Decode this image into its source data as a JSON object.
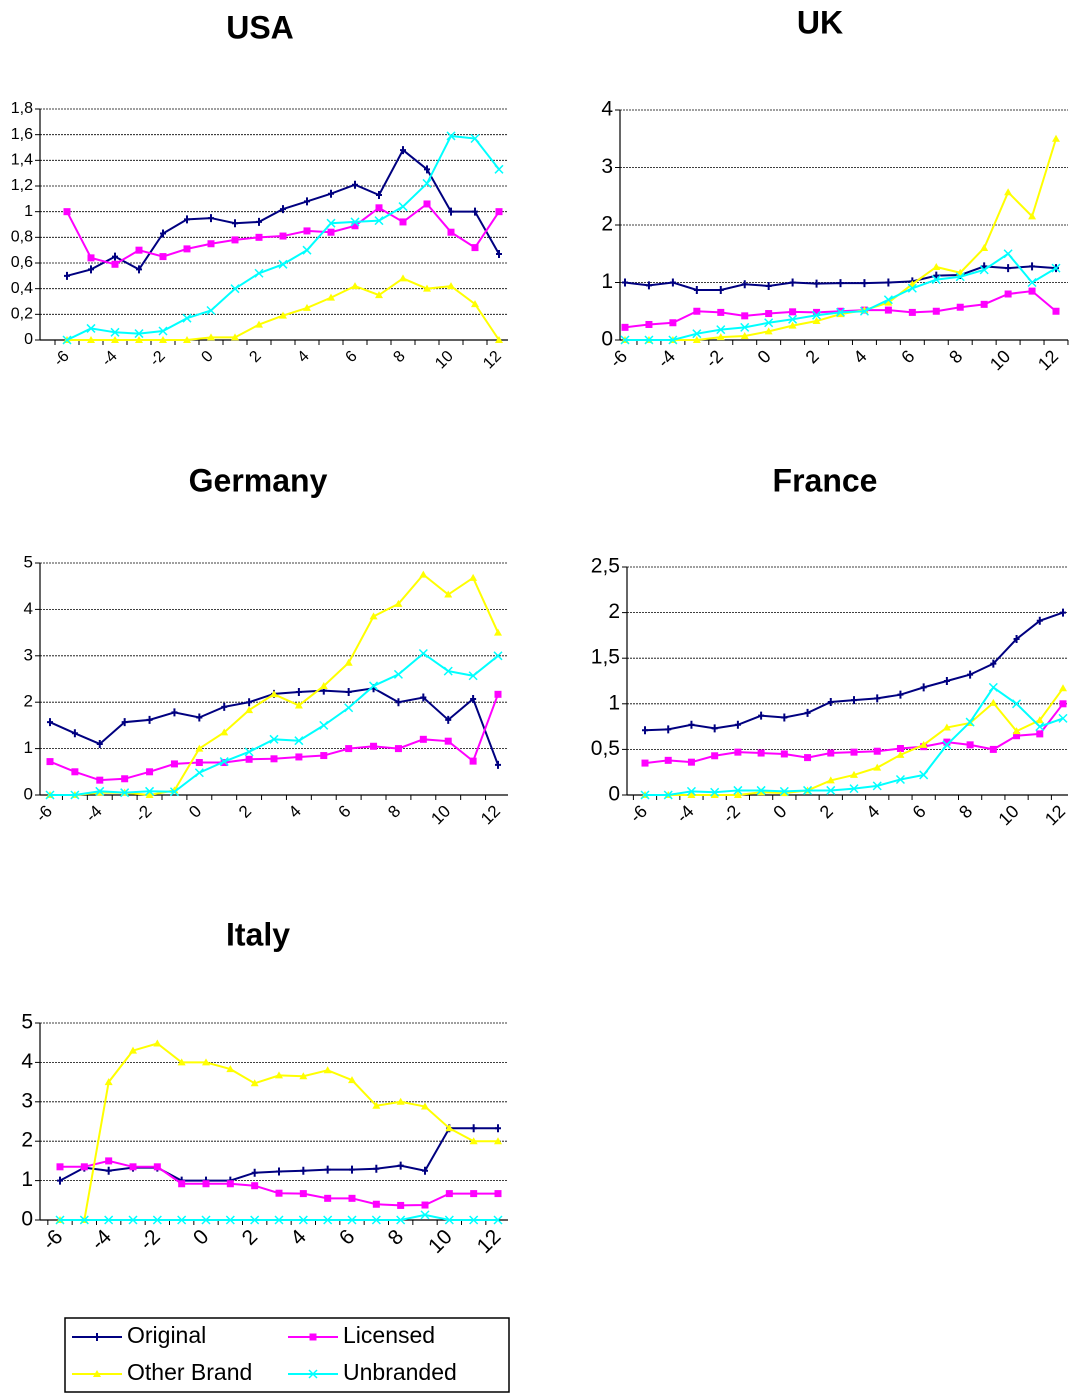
{
  "chart_data": [
    {
      "type": "line",
      "title": "USA",
      "categories": [
        "-6",
        null,
        "-4",
        null,
        "-2",
        null,
        "0",
        null,
        "2",
        null,
        "4",
        null,
        "6",
        null,
        "8",
        null,
        "10",
        null,
        "12"
      ],
      "ylim": [
        0,
        1.8
      ],
      "yticks": [
        0,
        {
          "value": 0.2,
          "label": "0,2"
        },
        {
          "value": 0.4,
          "label": "0,4"
        },
        {
          "value": 0.6,
          "label": "0,6"
        },
        {
          "value": 0.8,
          "label": "0,8"
        },
        1,
        {
          "value": 1.2,
          "label": "1,2"
        },
        {
          "value": 1.4,
          "label": "1,4"
        },
        {
          "value": 1.6,
          "label": "1,6"
        },
        {
          "value": 1.8,
          "label": "1,8"
        }
      ],
      "grid": true,
      "series": [
        {
          "name": "Original",
          "color": "#000080",
          "values": [
            0.5,
            0.55,
            0.65,
            0.55,
            0.83,
            0.94,
            0.95,
            0.91,
            0.92,
            1.02,
            1.08,
            1.14,
            1.21,
            1.13,
            1.48,
            1.33,
            1.0,
            1.0,
            0.67
          ]
        },
        {
          "name": "Licensed",
          "color": "#ff00ff",
          "values": [
            1.0,
            0.64,
            0.59,
            0.7,
            0.65,
            0.71,
            0.75,
            0.78,
            0.8,
            0.81,
            0.85,
            0.84,
            0.89,
            1.03,
            0.92,
            1.06,
            0.84,
            0.72,
            1.0
          ]
        },
        {
          "name": "Other Brand",
          "color": "#ffff00",
          "values": [
            0,
            0,
            0,
            0,
            0,
            0,
            0.02,
            0.02,
            0.12,
            0.19,
            0.25,
            0.33,
            0.42,
            0.35,
            0.48,
            0.4,
            0.42,
            0.28,
            0
          ]
        },
        {
          "name": "Unbranded",
          "color": "#00ffff",
          "values": [
            0,
            0.09,
            0.06,
            0.05,
            0.07,
            0.17,
            0.23,
            0.4,
            0.52,
            0.59,
            0.7,
            0.91,
            0.92,
            0.93,
            1.04,
            1.22,
            1.59,
            1.57,
            1.33
          ]
        }
      ]
    },
    {
      "type": "line",
      "title": "UK",
      "categories": [
        "-6",
        null,
        "-4",
        null,
        "-2",
        null,
        "0",
        null,
        "2",
        null,
        "4",
        null,
        "6",
        null,
        "8",
        null,
        "10",
        null,
        "12"
      ],
      "ylim": [
        0,
        4
      ],
      "yticks": [
        0,
        1,
        2,
        3,
        4
      ],
      "grid": true,
      "series": [
        {
          "name": "Original",
          "color": "#000080",
          "values": [
            1.0,
            0.95,
            1.0,
            0.87,
            0.87,
            0.97,
            0.94,
            1.0,
            0.98,
            0.99,
            0.99,
            1.0,
            1.02,
            1.12,
            1.13,
            1.28,
            1.25,
            1.28,
            1.25
          ]
        },
        {
          "name": "Licensed",
          "color": "#ff00ff",
          "values": [
            0.22,
            0.27,
            0.3,
            0.5,
            0.48,
            0.42,
            0.46,
            0.49,
            0.48,
            0.5,
            0.52,
            0.52,
            0.48,
            0.5,
            0.57,
            0.62,
            0.8,
            0.85,
            0.5
          ]
        },
        {
          "name": "Other Brand",
          "color": "#ffff00",
          "values": [
            0,
            0,
            0,
            0,
            0.05,
            0.07,
            0.15,
            0.25,
            0.33,
            0.45,
            0.52,
            0.65,
            0.97,
            1.27,
            1.17,
            1.6,
            2.57,
            2.15,
            3.5
          ]
        },
        {
          "name": "Unbranded",
          "color": "#00ffff",
          "values": [
            0,
            0,
            0,
            0.11,
            0.18,
            0.22,
            0.3,
            0.36,
            0.43,
            0.48,
            0.5,
            0.7,
            0.9,
            1.05,
            1.1,
            1.22,
            1.5,
            1.0,
            1.25
          ]
        }
      ]
    },
    {
      "type": "line",
      "title": "Germany",
      "categories": [
        "-6",
        null,
        "-4",
        null,
        "-2",
        null,
        "0",
        null,
        "2",
        null,
        "4",
        null,
        "6",
        null,
        "8",
        null,
        "10",
        null,
        "12"
      ],
      "ylim": [
        0,
        5
      ],
      "yticks": [
        0,
        1,
        2,
        3,
        4,
        5
      ],
      "grid": true,
      "series": [
        {
          "name": "Original",
          "color": "#000080",
          "values": [
            1.57,
            1.33,
            1.1,
            1.57,
            1.62,
            1.78,
            1.67,
            1.9,
            2.0,
            2.18,
            2.22,
            2.25,
            2.22,
            2.3,
            2.0,
            2.1,
            1.62,
            2.07,
            0.65
          ]
        },
        {
          "name": "Licensed",
          "color": "#ff00ff",
          "values": [
            0.72,
            0.5,
            0.32,
            0.35,
            0.5,
            0.67,
            0.7,
            0.7,
            0.77,
            0.78,
            0.82,
            0.85,
            1.0,
            1.05,
            1.0,
            1.2,
            1.16,
            0.73,
            2.17
          ]
        },
        {
          "name": "Other Brand",
          "color": "#ffff00",
          "values": [
            0,
            0,
            0.05,
            0.05,
            0,
            0.1,
            1.0,
            1.35,
            1.83,
            2.17,
            1.93,
            2.35,
            2.85,
            3.85,
            4.12,
            4.75,
            4.32,
            4.68,
            3.5
          ]
        },
        {
          "name": "Unbranded",
          "color": "#00ffff",
          "values": [
            0,
            0,
            0.08,
            0.05,
            0.08,
            0.07,
            0.48,
            0.72,
            0.93,
            1.2,
            1.17,
            1.5,
            1.88,
            2.35,
            2.6,
            3.05,
            2.67,
            2.57,
            3.0
          ]
        }
      ]
    },
    {
      "type": "line",
      "title": "France",
      "categories": [
        "-6",
        null,
        "-4",
        null,
        "-2",
        null,
        "0",
        null,
        "2",
        null,
        "4",
        null,
        "6",
        null,
        "8",
        null,
        "10",
        null,
        "12"
      ],
      "ylim": [
        0,
        2.5
      ],
      "yticks": [
        0,
        {
          "value": 0.5,
          "label": "0,5"
        },
        1,
        {
          "value": 1.5,
          "label": "1,5"
        },
        2,
        {
          "value": 2.5,
          "label": "2,5"
        }
      ],
      "grid": true,
      "series": [
        {
          "name": "Original",
          "color": "#000080",
          "values": [
            0.71,
            0.72,
            0.77,
            0.73,
            0.77,
            0.87,
            0.85,
            0.9,
            1.02,
            1.04,
            1.06,
            1.1,
            1.18,
            1.25,
            1.32,
            1.44,
            1.71,
            1.91,
            2.0
          ]
        },
        {
          "name": "Licensed",
          "color": "#ff00ff",
          "values": [
            0.35,
            0.38,
            0.36,
            0.43,
            0.47,
            0.46,
            0.45,
            0.41,
            0.46,
            0.47,
            0.48,
            0.51,
            0.53,
            0.58,
            0.55,
            0.5,
            0.65,
            0.67,
            1.0
          ]
        },
        {
          "name": "Other Brand",
          "color": "#ffff00",
          "values": [
            0,
            0,
            0,
            0,
            0,
            0.03,
            0.02,
            0.05,
            0.16,
            0.22,
            0.3,
            0.44,
            0.55,
            0.74,
            0.79,
            1.01,
            0.7,
            0.82,
            1.17
          ]
        },
        {
          "name": "Unbranded",
          "color": "#00ffff",
          "values": [
            0,
            0,
            0.04,
            0.03,
            0.05,
            0.05,
            0.04,
            0.05,
            0.05,
            0.07,
            0.1,
            0.17,
            0.22,
            0.55,
            0.8,
            1.18,
            1.0,
            0.75,
            0.84
          ]
        }
      ]
    },
    {
      "type": "line",
      "title": "Italy",
      "categories": [
        "-6",
        null,
        "-4",
        null,
        "-2",
        null,
        "0",
        null,
        "2",
        null,
        "4",
        null,
        "6",
        null,
        "8",
        null,
        "10",
        null,
        "12"
      ],
      "ylim": [
        0,
        5
      ],
      "yticks": [
        0,
        1,
        2,
        3,
        4,
        5
      ],
      "grid": true,
      "series": [
        {
          "name": "Original",
          "color": "#000080",
          "values": [
            1.0,
            1.33,
            1.25,
            1.33,
            1.33,
            1.0,
            1.0,
            1.0,
            1.2,
            1.23,
            1.25,
            1.28,
            1.28,
            1.3,
            1.38,
            1.25,
            2.33,
            2.33,
            2.33
          ]
        },
        {
          "name": "Licensed",
          "color": "#ff00ff",
          "values": [
            1.35,
            1.35,
            1.5,
            1.35,
            1.35,
            0.92,
            0.92,
            0.92,
            0.87,
            0.68,
            0.67,
            0.55,
            0.55,
            0.4,
            0.37,
            0.38,
            0.67,
            0.67,
            0.67
          ]
        },
        {
          "name": "Other Brand",
          "color": "#ffff00",
          "values": [
            0,
            0,
            3.5,
            4.3,
            4.48,
            4.0,
            4.0,
            3.83,
            3.47,
            3.67,
            3.65,
            3.8,
            3.55,
            2.9,
            3.0,
            2.88,
            2.33,
            2.0,
            2.0
          ]
        },
        {
          "name": "Unbranded",
          "color": "#00ffff",
          "values": [
            0,
            0,
            0,
            0,
            0,
            0,
            0,
            0,
            0,
            0,
            0,
            0,
            0,
            0,
            0,
            0.13,
            0,
            0,
            0
          ]
        }
      ]
    }
  ]
}
